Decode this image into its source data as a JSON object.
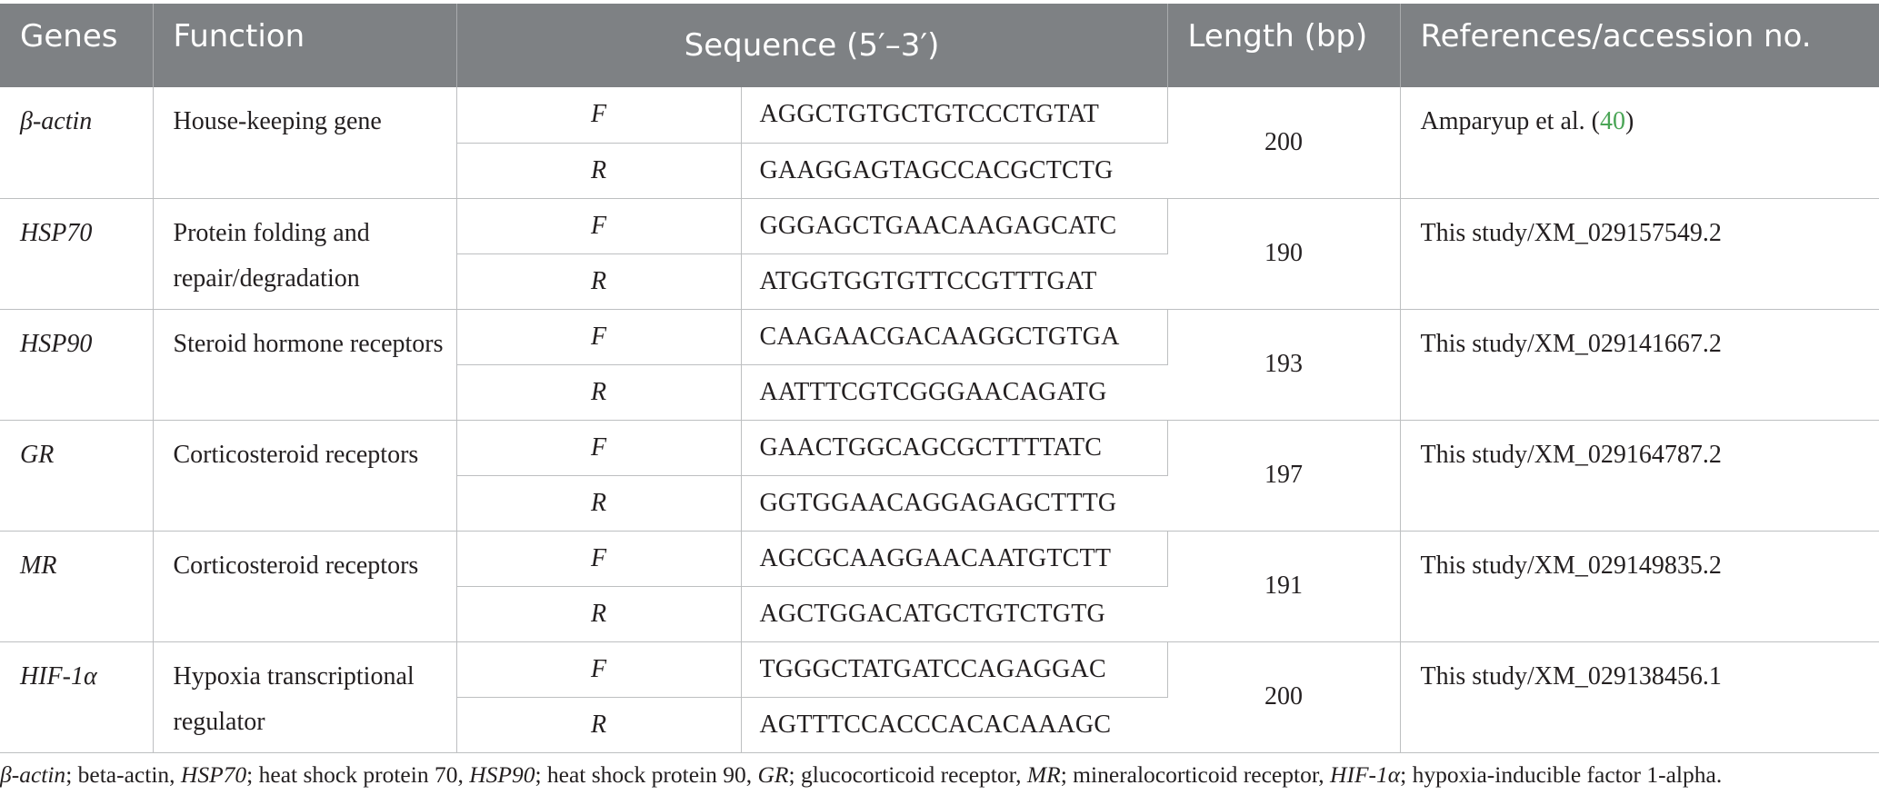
{
  "table": {
    "headers": {
      "genes": "Genes",
      "function": "Function",
      "sequence": "Sequence (5′–3′)",
      "length": "Length (bp)",
      "references": "References/accession no."
    },
    "rows": [
      {
        "gene": "β-actin",
        "function": "House-keeping gene",
        "forward_label": "F",
        "forward": "AGGCTGTGCTGTCCCTGTAT",
        "reverse_label": "R",
        "reverse": "GAAGGAGTAGCCACGCTCTG",
        "length": "200",
        "reference_text": "Amparyup et al. (",
        "reference_num": "40",
        "reference_close": ")"
      },
      {
        "gene": "HSP70",
        "function": "Protein folding and repair/degradation",
        "forward_label": "F",
        "forward": "GGGAGCTGAACAAGAGCATC",
        "reverse_label": "R",
        "reverse": "ATGGTGGTGTTCCGTTTGAT",
        "length": "190",
        "reference": "This study/XM_029157549.2"
      },
      {
        "gene": "HSP90",
        "function": "Steroid hormone receptors",
        "forward_label": "F",
        "forward": "CAAGAACGACAAGGCTGTGA",
        "reverse_label": "R",
        "reverse": "AATTTCGTCGGGAACAGATG",
        "length": "193",
        "reference": "This study/XM_029141667.2"
      },
      {
        "gene": "GR",
        "function": "Corticosteroid receptors",
        "forward_label": "F",
        "forward": "GAACTGGCAGCGCTTTTATC",
        "reverse_label": "R",
        "reverse": "GGTGGAACAGGAGAGCTTTG",
        "length": "197",
        "reference": "This study/XM_029164787.2"
      },
      {
        "gene": "MR",
        "function": "Corticosteroid receptors",
        "forward_label": "F",
        "forward": "AGCGCAAGGAACAATGTCTT",
        "reverse_label": "R",
        "reverse": "AGCTGGACATGCTGTCTGTG",
        "length": "191",
        "reference": "This study/XM_029149835.2"
      },
      {
        "gene": "HIF-1α",
        "function": "Hypoxia transcriptional regulator",
        "forward_label": "F",
        "forward": "TGGGCTATGATCCAGAGGAC",
        "reverse_label": "R",
        "reverse": "AGTTTCCACCCACACAAAGC",
        "length": "200",
        "reference": "This study/XM_029138456.1"
      }
    ]
  },
  "footnote": {
    "items": [
      {
        "abbr": "β-actin",
        "desc": "; beta-actin, "
      },
      {
        "abbr": "HSP70",
        "desc": "; heat shock protein 70, "
      },
      {
        "abbr": "HSP90",
        "desc": "; heat shock protein 90, "
      },
      {
        "abbr": "GR",
        "desc": "; glucocorticoid receptor, "
      },
      {
        "abbr": "MR",
        "desc": "; mineralocorticoid receptor, "
      },
      {
        "abbr": "HIF-1α",
        "desc": "; hypoxia-inducible factor 1-alpha."
      }
    ]
  },
  "colors": {
    "header_bg": "#7e8184",
    "header_text": "#ffffff",
    "rule": "#bdbfc1",
    "reference_link": "#4aa556"
  }
}
